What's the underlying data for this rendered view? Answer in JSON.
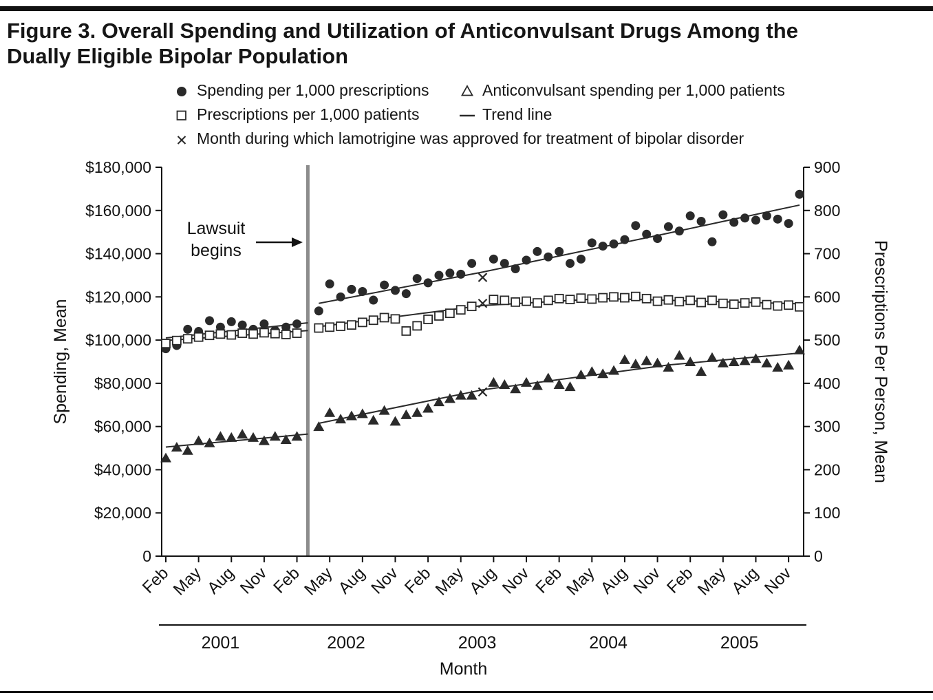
{
  "figure": {
    "title_line1": "Figure 3. Overall Spending and Utilization of Anticonvulsant Drugs Among the",
    "title_line2": "Dually Eligible Bipolar Population"
  },
  "legend": {
    "items": [
      {
        "icon": "filled-circle-icon",
        "label": "Spending per 1,000 prescriptions"
      },
      {
        "icon": "open-triangle-icon",
        "label": "Anticonvulsant spending per 1,000 patients"
      },
      {
        "icon": "open-square-icon",
        "label": "Prescriptions per 1,000 patients"
      },
      {
        "icon": "trend-line-icon",
        "label": "Trend line"
      },
      {
        "icon": "x-mark-icon",
        "label": "Month during which lamotrigine was approved for treatment of bipolar disorder"
      }
    ]
  },
  "chart_data": {
    "type": "scatter",
    "title": "Overall Spending and Utilization of Anticonvulsant Drugs Among the Dually Eligible Bipolar Population",
    "xlabel": "Month",
    "n_months": 59,
    "colors": {
      "ink": "#2a2a2a",
      "lawsuit_line": "#8c8c8c"
    },
    "x_axis": {
      "start": "Feb 2001",
      "end": "Dec 2005",
      "ticks": [
        {
          "month": 0,
          "label": "Feb"
        },
        {
          "month": 3,
          "label": "May"
        },
        {
          "month": 6,
          "label": "Aug"
        },
        {
          "month": 9,
          "label": "Nov"
        },
        {
          "month": 12,
          "label": "Feb"
        },
        {
          "month": 15,
          "label": "May"
        },
        {
          "month": 18,
          "label": "Aug"
        },
        {
          "month": 21,
          "label": "Nov"
        },
        {
          "month": 24,
          "label": "Feb"
        },
        {
          "month": 27,
          "label": "May"
        },
        {
          "month": 30,
          "label": "Aug"
        },
        {
          "month": 33,
          "label": "Nov"
        },
        {
          "month": 36,
          "label": "Feb"
        },
        {
          "month": 39,
          "label": "May"
        },
        {
          "month": 42,
          "label": "Aug"
        },
        {
          "month": 45,
          "label": "Nov"
        },
        {
          "month": 48,
          "label": "Feb"
        },
        {
          "month": 51,
          "label": "May"
        },
        {
          "month": 54,
          "label": "Aug"
        },
        {
          "month": 57,
          "label": "Nov"
        }
      ],
      "years": [
        {
          "label": "2001",
          "start": 0,
          "end": 10
        },
        {
          "label": "2002",
          "start": 11,
          "end": 22
        },
        {
          "label": "2003",
          "start": 23,
          "end": 34
        },
        {
          "label": "2004",
          "start": 35,
          "end": 46
        },
        {
          "label": "2005",
          "start": 47,
          "end": 58
        }
      ]
    },
    "y_left": {
      "label": "Spending, Mean",
      "min": 0,
      "max": 180000,
      "tick_interval": 20000,
      "tick_labels": [
        "0",
        "$20,000",
        "$40,000",
        "$60,000",
        "$80,000",
        "$100,000",
        "$120,000",
        "$140,000",
        "$160,000",
        "$180,000"
      ]
    },
    "y_right": {
      "label": "Prescriptions Per Person, Mean",
      "min": 0,
      "max": 900,
      "tick_interval": 100,
      "tick_labels": [
        "0",
        "100",
        "200",
        "300",
        "400",
        "500",
        "600",
        "700",
        "800",
        "900"
      ]
    },
    "annotations": {
      "lawsuit": {
        "label_line1": "Lawsuit",
        "label_line2": "begins",
        "month": 13,
        "line_color": "#8c8c8c"
      },
      "lamotrigine_month": 29
    },
    "series": [
      {
        "id": "spending-per-1000-prescriptions",
        "name": "Spending per 1,000 prescriptions",
        "marker": "filled-circle",
        "axis": "left",
        "values": [
          96000,
          97500,
          105000,
          104000,
          109000,
          106000,
          108500,
          107000,
          105000,
          107500,
          104500,
          106000,
          107500,
          null,
          113500,
          126000,
          120000,
          123500,
          122500,
          118500,
          125500,
          123000,
          121500,
          128500,
          126500,
          130000,
          131000,
          130500,
          135500,
          129000,
          137500,
          135500,
          133000,
          137000,
          141000,
          138500,
          141000,
          135500,
          137500,
          145000,
          143500,
          144500,
          146500,
          153000,
          149000,
          147000,
          152500,
          150500,
          157500,
          155000,
          145500,
          158000,
          154500,
          156500,
          155500,
          157500,
          156000,
          154000,
          167500
        ],
        "trend_pre": [
          [
            0,
            101000
          ],
          [
            13,
            108000
          ]
        ],
        "trend_post": [
          [
            14,
            117000
          ],
          [
            29,
            131500
          ],
          [
            46,
            149500
          ],
          [
            58,
            162500
          ]
        ]
      },
      {
        "id": "prescriptions-per-1000-patients",
        "name": "Prescriptions per 1,000 patients",
        "marker": "open-square",
        "axis": "right",
        "values": [
          492,
          499,
          503,
          507,
          511,
          514,
          512,
          516,
          514,
          517,
          515,
          513,
          516,
          null,
          528,
          530,
          532,
          535,
          541,
          546,
          552,
          549,
          521,
          533,
          548,
          556,
          562,
          570,
          578,
          585,
          594,
          592,
          588,
          590,
          586,
          592,
          596,
          594,
          597,
          595,
          598,
          600,
          598,
          601,
          596,
          590,
          593,
          589,
          592,
          587,
          592,
          585,
          583,
          586,
          588,
          582,
          579,
          581,
          577
        ],
        "trend_pre": [
          [
            0,
            499
          ],
          [
            13,
            522
          ]
        ],
        "trend_post": [
          [
            14,
            531
          ],
          [
            29,
            580
          ],
          [
            40,
            596
          ],
          [
            58,
            584
          ]
        ]
      },
      {
        "id": "anticonvulsant-spending-per-1000-patients",
        "name": "Anticonvulsant spending per 1,000 patients",
        "marker": "filled-triangle",
        "axis": "left",
        "values": [
          45500,
          50500,
          49000,
          53500,
          52500,
          55500,
          55000,
          56500,
          55000,
          53500,
          55500,
          54000,
          55500,
          null,
          60000,
          66500,
          63500,
          65000,
          66000,
          63000,
          67500,
          62500,
          65500,
          66500,
          68500,
          71500,
          73000,
          74500,
          74500,
          76000,
          80500,
          79500,
          77500,
          80500,
          79000,
          82500,
          79500,
          78500,
          84000,
          85500,
          84500,
          86000,
          91000,
          89000,
          90500,
          89500,
          87500,
          93000,
          90000,
          85500,
          92000,
          89500,
          90000,
          90500,
          91500,
          89500,
          87500,
          88500,
          95500
        ],
        "trend_pre": [
          [
            0,
            50500
          ],
          [
            13,
            56500
          ]
        ],
        "trend_post": [
          [
            14,
            61500
          ],
          [
            29,
            77000
          ],
          [
            46,
            88500
          ],
          [
            58,
            94000
          ]
        ]
      }
    ]
  }
}
